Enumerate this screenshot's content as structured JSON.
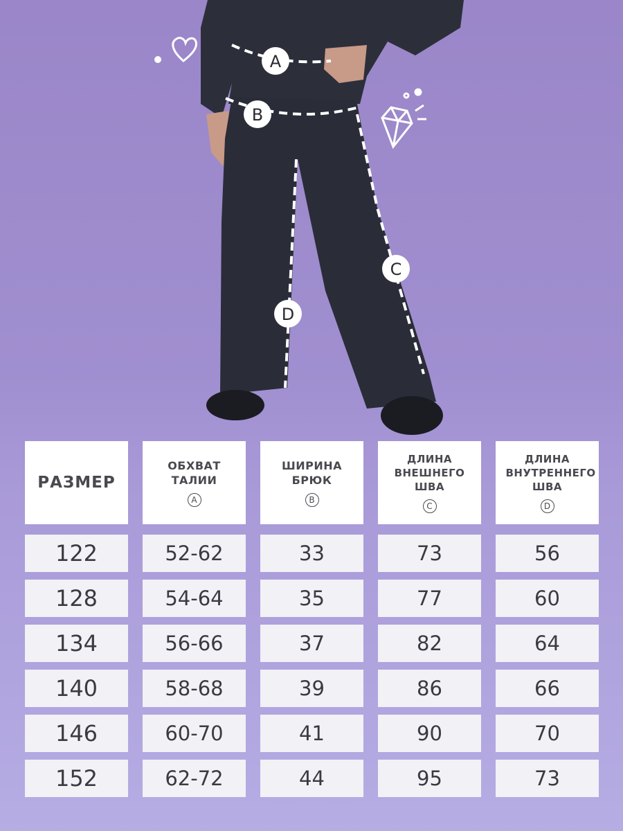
{
  "measure_markers": [
    "A",
    "B",
    "C",
    "D"
  ],
  "table": {
    "headers": [
      {
        "label": "РАЗМЕР",
        "marker": ""
      },
      {
        "label": "ОБХВАТ ТАЛИИ",
        "marker": "A"
      },
      {
        "label": "ШИРИНА БРЮК",
        "marker": "B"
      },
      {
        "label": "ДЛИНА ВНЕШНЕГО ШВА",
        "marker": "C"
      },
      {
        "label": "ДЛИНА ВНУТРЕННЕГО ШВА",
        "marker": "D"
      }
    ],
    "rows": [
      [
        "122",
        "52-62",
        "33",
        "73",
        "56"
      ],
      [
        "128",
        "54-64",
        "35",
        "77",
        "60"
      ],
      [
        "134",
        "56-66",
        "37",
        "82",
        "64"
      ],
      [
        "140",
        "58-68",
        "39",
        "86",
        "66"
      ],
      [
        "146",
        "60-70",
        "41",
        "90",
        "70"
      ],
      [
        "152",
        "62-72",
        "44",
        "95",
        "73"
      ]
    ]
  },
  "colors": {
    "background": "#a08fd0",
    "header_cell": "#ffffff",
    "data_cell": "#f2f1f6",
    "text": "#3b3a40"
  },
  "icons": [
    "heart-icon",
    "diamond-icon"
  ]
}
